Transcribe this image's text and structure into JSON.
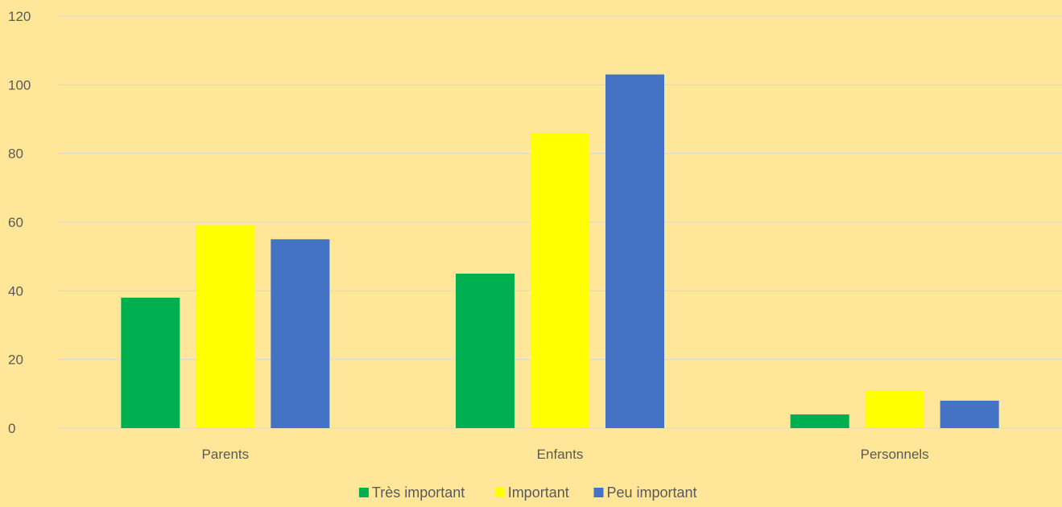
{
  "chart_data": {
    "type": "bar",
    "categories": [
      "Parents",
      "Enfants",
      "Personnels"
    ],
    "series": [
      {
        "name": "Très important",
        "values": [
          38,
          45,
          4
        ],
        "color": "#00B050"
      },
      {
        "name": "Important",
        "values": [
          59,
          86,
          11
        ],
        "color": "#FFFF00"
      },
      {
        "name": "Peu important",
        "values": [
          55,
          103,
          8
        ],
        "color": "#4472C4"
      }
    ],
    "ylim": [
      0,
      120
    ],
    "yticks": [
      0,
      20,
      40,
      60,
      80,
      100,
      120
    ],
    "title": "",
    "xlabel": "",
    "ylabel": "",
    "grid": true,
    "legend_position": "bottom",
    "background_color": "#FFE699",
    "gridline_color": "#D9D9D9"
  }
}
